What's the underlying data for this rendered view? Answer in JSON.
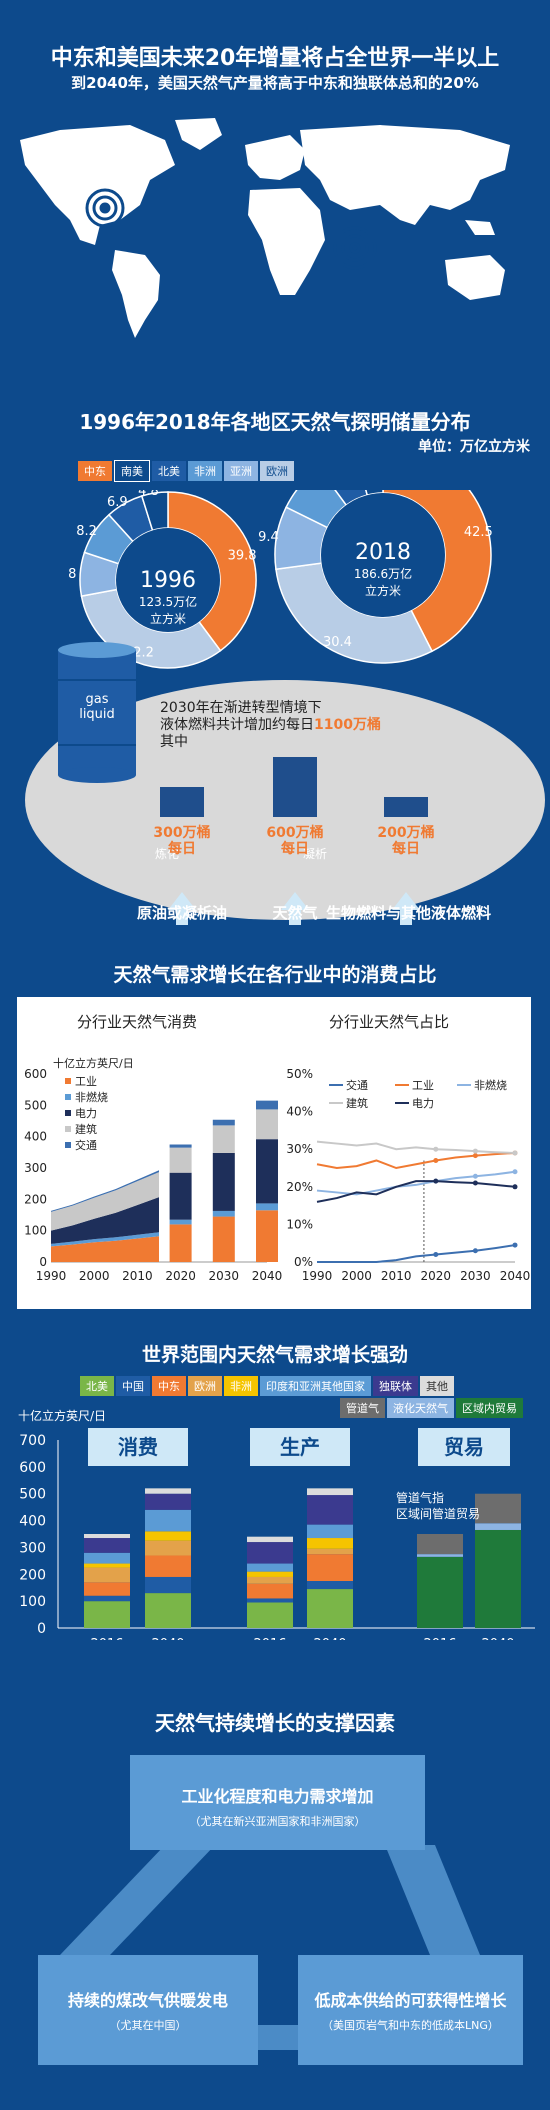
{
  "header": {
    "title": "中东和美国未来20年增量将占全世界一半以上",
    "subtitle": "到2040年，美国天然气产量将高于中东和独联体总和的20%"
  },
  "reserves": {
    "title": "1996年2018年各地区天然气探明储量分布",
    "unit": "单位：万亿立方米",
    "legend": [
      {
        "label": "中东",
        "color": "#f07a32"
      },
      {
        "label": "南美",
        "color": "#0d4a8c"
      },
      {
        "label": "北美",
        "color": "#1f5ca5"
      },
      {
        "label": "非洲",
        "color": "#5b9bd5"
      },
      {
        "label": "亚洲",
        "color": "#8db4e2"
      },
      {
        "label": "欧洲",
        "color": "#b8cde6"
      }
    ],
    "year1996": {
      "year": "1996",
      "total": "123.5万亿立方米",
      "total_line1": "123.5万亿",
      "total_line2": "立方米"
    },
    "year2018": {
      "year": "2018",
      "total": "186.6万亿立方米",
      "total_line1": "186.6万亿",
      "total_line2": "立方米"
    }
  },
  "liquid": {
    "barrel_label_1": "gas",
    "barrel_label_2": "liquid",
    "note_pre": "2030年在渐进转型情境下液体燃料共计增加约每日",
    "note_line1": "2030年在渐进转型情境下",
    "note_line2": "液体燃料共计增加约每日",
    "note_highlight": "1100万桶",
    "note_post": "其中",
    "bars": [
      {
        "value": 300,
        "label1": "300万桶",
        "label2": "每日",
        "source": "原油或凝析油"
      },
      {
        "value": 600,
        "label1": "600万桶",
        "label2": "每日",
        "source": "天然气"
      },
      {
        "value": 200,
        "label1": "200万桶",
        "label2": "每日",
        "source": "生物燃料与其他液体燃料"
      }
    ],
    "arrow_note_1": "炼化",
    "arrow_note_2": "凝析"
  },
  "sector": {
    "title": "天然气需求增长在各行业中的消费占比",
    "left_title": "分行业天然气消费",
    "right_title": "分行业天然气占比",
    "left_unit": "十亿立方英尺/日",
    "left_legend": [
      "工业",
      "非燃烧",
      "电力",
      "建筑",
      "交通"
    ],
    "right_legend": [
      "交通",
      "工业",
      "非燃烧",
      "建筑",
      "电力"
    ]
  },
  "demand": {
    "title": "世界范围内天然气需求增长强劲",
    "legend_row1": [
      {
        "label": "北美",
        "color": "#7ab648"
      },
      {
        "label": "中国",
        "color": "#1f5ca5"
      },
      {
        "label": "中东",
        "color": "#f07a32"
      },
      {
        "label": "欧洲",
        "color": "#e3a24a"
      },
      {
        "label": "非洲",
        "color": "#f5c400"
      },
      {
        "label": "印度和亚洲其他国家",
        "color": "#5b9bd5"
      },
      {
        "label": "独联体",
        "color": "#3b3a8f"
      },
      {
        "label": "其他",
        "color": "#dcdcdc"
      }
    ],
    "legend_row2": [
      {
        "label": "管道气",
        "color": "#6d6d6d"
      },
      {
        "label": "液化天然气",
        "color": "#8db4e2"
      },
      {
        "label": "区域内贸易",
        "color": "#1f7a3a"
      }
    ],
    "unit": "十亿立方英尺/日",
    "groups": [
      "消费",
      "生产",
      "贸易"
    ],
    "trade_note_1": "管道气指",
    "trade_note_2": "区域间管道贸易",
    "years": [
      "2016",
      "2040"
    ]
  },
  "factors": {
    "title": "天然气持续增长的支撑因素",
    "top_main": "工业化程度和电力需求增加",
    "top_sub": "（尤其在新兴亚洲国家和非洲国家）",
    "left_main": "持续的煤改气供暖发电",
    "left_sub": "（尤其在中国）",
    "right_main": "低成本供给的可获得性增长",
    "right_sub": "（美国页岩气和中东的低成本LNG）"
  },
  "chart_data": [
    {
      "type": "pie",
      "title": "1996",
      "categories": [
        "中东",
        "欧洲",
        "亚洲",
        "非洲",
        "北美",
        "南美"
      ],
      "values": [
        39.8,
        32.2,
        8.0,
        8.2,
        6.9,
        4.8
      ],
      "total": 123.5
    },
    {
      "type": "pie",
      "title": "2018",
      "categories": [
        "中东",
        "欧洲",
        "亚洲",
        "非洲",
        "北美",
        "南美"
      ],
      "values": [
        42.5,
        30.4,
        9.4,
        7.6,
        6.0,
        4.1
      ],
      "total": 186.6
    },
    {
      "type": "bar",
      "title": "",
      "categories": [
        "原油或凝析油",
        "天然气",
        "生物燃料与其他液体燃料"
      ],
      "values": [
        300,
        600,
        200
      ]
    },
    {
      "type": "area",
      "title": "分行业天然气消费",
      "ylabel": "十亿立方英尺/日",
      "x": [
        1990,
        1995,
        2000,
        2005,
        2010,
        2015
      ],
      "series": [
        {
          "name": "工业",
          "values": [
            50,
            56,
            63,
            68,
            75,
            82
          ]
        },
        {
          "name": "非燃烧",
          "values": [
            8,
            9,
            10,
            11,
            12,
            13
          ]
        },
        {
          "name": "电力",
          "values": [
            42,
            52,
            65,
            78,
            95,
            112
          ]
        },
        {
          "name": "建筑",
          "values": [
            60,
            63,
            67,
            72,
            76,
            80
          ]
        },
        {
          "name": "交通",
          "values": [
            3,
            3,
            4,
            4,
            5,
            6
          ]
        }
      ],
      "ylim": [
        0,
        600
      ],
      "xlim": [
        1990,
        2040
      ]
    },
    {
      "type": "bar",
      "title": "分行业天然气消费",
      "categories": [
        "2020",
        "2030",
        "2040"
      ],
      "series": [
        {
          "name": "工业",
          "values": [
            120,
            145,
            165
          ]
        },
        {
          "name": "非燃烧",
          "values": [
            15,
            18,
            22
          ]
        },
        {
          "name": "电力",
          "values": [
            150,
            185,
            205
          ]
        },
        {
          "name": "建筑",
          "values": [
            80,
            88,
            95
          ]
        },
        {
          "name": "交通",
          "values": [
            10,
            18,
            28
          ]
        }
      ],
      "ylim": [
        0,
        600
      ]
    },
    {
      "type": "line",
      "title": "分行业天然气占比",
      "x": [
        1990,
        1995,
        2000,
        2005,
        2010,
        2015,
        2020,
        2025,
        2030,
        2035,
        2040
      ],
      "series": [
        {
          "name": "交通",
          "values": [
            0.0,
            0.0,
            0.0,
            0.0,
            0.5,
            1.5,
            2.0,
            2.5,
            3.0,
            3.7,
            4.5
          ]
        },
        {
          "name": "工业",
          "values": [
            26,
            25,
            25.5,
            27,
            25,
            26,
            27,
            27.8,
            28.3,
            28.7,
            29
          ]
        },
        {
          "name": "非燃烧",
          "values": [
            19,
            18.5,
            18,
            19,
            20,
            20.5,
            21.5,
            22.3,
            22.8,
            23.3,
            24
          ]
        },
        {
          "name": "建筑",
          "values": [
            32,
            31.5,
            31,
            31.5,
            30,
            30.5,
            30,
            29.8,
            29.5,
            29.2,
            29
          ]
        },
        {
          "name": "电力",
          "values": [
            16,
            17,
            18.5,
            18,
            20,
            21.5,
            21.5,
            21.2,
            21,
            20.5,
            20
          ]
        }
      ],
      "ylim": [
        0,
        50
      ],
      "ylabel": "",
      "xlabel": ""
    },
    {
      "type": "bar",
      "title": "世界范围内天然气需求增长强劲",
      "ylabel": "十亿立方英尺/日",
      "ylim": [
        0,
        700
      ],
      "categories": [
        "消费 2016",
        "消费 2040",
        "生产 2016",
        "生产 2040",
        "贸易 2016",
        "贸易 2040"
      ],
      "series": [
        {
          "name": "北美",
          "values": [
            100,
            130,
            95,
            145,
            0,
            0
          ]
        },
        {
          "name": "中国",
          "values": [
            20,
            60,
            15,
            30,
            0,
            0
          ]
        },
        {
          "name": "中东",
          "values": [
            50,
            80,
            55,
            100,
            0,
            0
          ]
        },
        {
          "name": "欧洲",
          "values": [
            55,
            55,
            25,
            20,
            0,
            0
          ]
        },
        {
          "name": "非洲",
          "values": [
            15,
            35,
            20,
            40,
            0,
            0
          ]
        },
        {
          "name": "印度和亚洲其他国家",
          "values": [
            40,
            80,
            30,
            50,
            0,
            0
          ]
        },
        {
          "name": "独联体",
          "values": [
            55,
            60,
            80,
            110,
            0,
            0
          ]
        },
        {
          "name": "其他",
          "values": [
            15,
            20,
            20,
            25,
            0,
            0
          ]
        },
        {
          "name": "区域内贸易",
          "values": [
            0,
            0,
            0,
            0,
            265,
            365
          ]
        },
        {
          "name": "液化天然气",
          "values": [
            0,
            0,
            0,
            0,
            10,
            25
          ]
        },
        {
          "name": "管道气",
          "values": [
            0,
            0,
            0,
            0,
            75,
            110
          ]
        }
      ]
    }
  ]
}
